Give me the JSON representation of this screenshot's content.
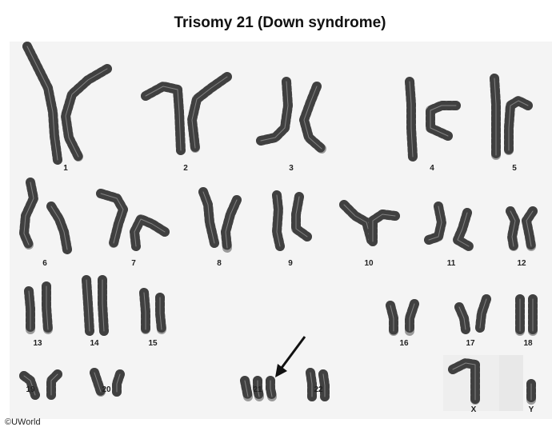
{
  "title": "Trisomy 21 (Down syndrome)",
  "copyright": "©UWorld",
  "chromosome_labels": [
    "1",
    "2",
    "3",
    "4",
    "5",
    "6",
    "7",
    "8",
    "9",
    "10",
    "11",
    "12",
    "13",
    "14",
    "15",
    "16",
    "17",
    "18",
    "19",
    "20",
    "21",
    "22",
    "X",
    "Y"
  ],
  "chromosome_21_count": 3,
  "colors": {
    "chromatid": "#9a9a9a",
    "band": "#222222",
    "plate": "#f4f4f4",
    "arrow": "#111111"
  }
}
